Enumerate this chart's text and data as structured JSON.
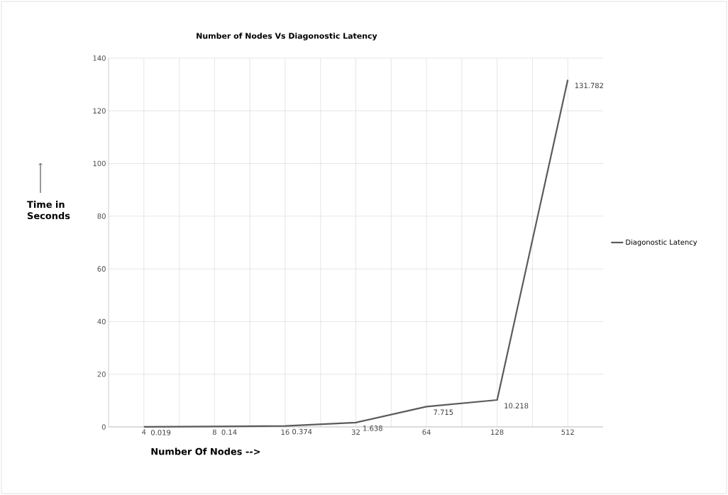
{
  "chart_data": {
    "type": "line",
    "title": "Number of Nodes Vs Diagonostic Latency",
    "xlabel": "Number Of Nodes -->",
    "ylabel": "Time in Seconds",
    "categories": [
      "4",
      "8",
      "16",
      "32",
      "64",
      "128",
      "512"
    ],
    "series": [
      {
        "name": "Diagonostic Latency",
        "color": "#5a5a5a",
        "values": [
          0.019,
          0.14,
          0.374,
          1.638,
          7.715,
          10.218,
          131.782
        ]
      }
    ],
    "ylim": [
      0,
      140
    ],
    "yticks": [
      0,
      20,
      40,
      60,
      80,
      100,
      120,
      140
    ],
    "grid": true,
    "legend": "right",
    "data_labels": true,
    "marker": "none",
    "line_style": "solid"
  }
}
